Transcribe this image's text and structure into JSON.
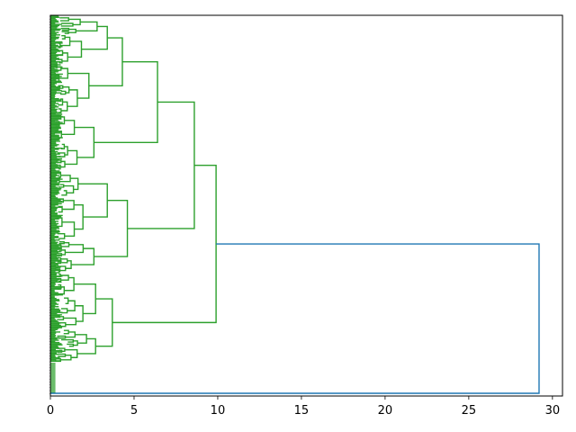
{
  "chart_data": {
    "type": "dendrogram",
    "orientation": "horizontal",
    "title": "",
    "xlabel": "",
    "ylabel": "",
    "xlim": [
      0,
      30.6
    ],
    "x_ticks": [
      0,
      5,
      10,
      15,
      20,
      25,
      30
    ],
    "x_tick_labels": [
      "0",
      "5",
      "10",
      "15",
      "20",
      "25",
      "30"
    ],
    "grid": false,
    "colors": {
      "cluster": "#2ca02c",
      "root": "#1f77b4"
    },
    "leaf_count": 320,
    "merges": [
      {
        "name": "root",
        "height": 29.2,
        "children": [
          "cluster-main",
          "singleton-bottom"
        ],
        "color": "#1f77b4"
      },
      {
        "name": "cluster-main",
        "height": 9.9,
        "children": [
          "cluster-upper",
          "cluster-lower"
        ]
      },
      {
        "name": "cluster-upper",
        "height": 8.6,
        "children": [
          "cluster-a",
          "cluster-b"
        ]
      },
      {
        "name": "cluster-a",
        "height": 6.4,
        "children": [
          "cluster-a1",
          "cluster-a2"
        ]
      },
      {
        "name": "cluster-a1",
        "height": 4.3,
        "children": [
          "cluster-a1a",
          "cluster-a1b"
        ]
      },
      {
        "name": "cluster-a1a",
        "height": 3.4
      },
      {
        "name": "cluster-a1b",
        "height": 2.3
      },
      {
        "name": "cluster-a2",
        "height": 2.6
      },
      {
        "name": "cluster-b",
        "height": 4.6,
        "children": [
          "cluster-b1",
          "cluster-b2"
        ]
      },
      {
        "name": "cluster-b1",
        "height": 3.4
      },
      {
        "name": "cluster-b2",
        "height": 2.6
      },
      {
        "name": "cluster-lower",
        "height": 3.7,
        "children": [
          "cluster-c1",
          "cluster-c2"
        ]
      },
      {
        "name": "cluster-c1",
        "height": 2.7
      },
      {
        "name": "cluster-c2",
        "height": 2.7
      }
    ]
  }
}
